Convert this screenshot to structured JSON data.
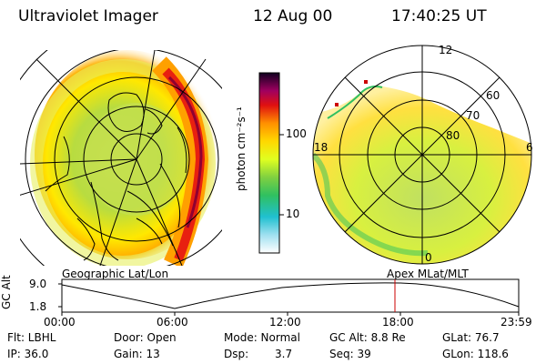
{
  "header": {
    "title": "Ultraviolet Imager",
    "date": "12 Aug 00",
    "time": "17:40:25 UT"
  },
  "colorbar": {
    "unit_label": "photon cm⁻²s⁻¹",
    "ticks": [
      "100",
      "10"
    ]
  },
  "left_panel": {
    "caption": "Geographic Lat/Lon"
  },
  "right_panel": {
    "caption": "Apex  MLat/MLT",
    "mlt_labels": {
      "top": "12",
      "left": "18",
      "right": "6",
      "bottom": "0"
    },
    "lat_labels": [
      "60",
      "70",
      "80"
    ]
  },
  "timeline": {
    "ylabel": "GC Alt",
    "ymax": "9.0",
    "ymin": "1.8",
    "xticks": [
      "00:00",
      "06:00",
      "12:00",
      "18:00",
      "23:59"
    ],
    "current_marker": "17:40"
  },
  "info": {
    "filter": "Flt: LBHL",
    "door": "Door: Open",
    "mode": "Mode: Normal",
    "gc_alt": "GC Alt: 8.8 Re",
    "glat": "GLat: 76.7",
    "ip": "IP: 36.0",
    "gain": "Gain: 13",
    "dsp_label": "Dsp:",
    "dsp_value": "3.7",
    "seq": "Seq: 39",
    "glon": "GLon: 118.6"
  },
  "colors": {
    "background": "#ffffff",
    "line": "#000000",
    "marker": "#cc0000"
  }
}
